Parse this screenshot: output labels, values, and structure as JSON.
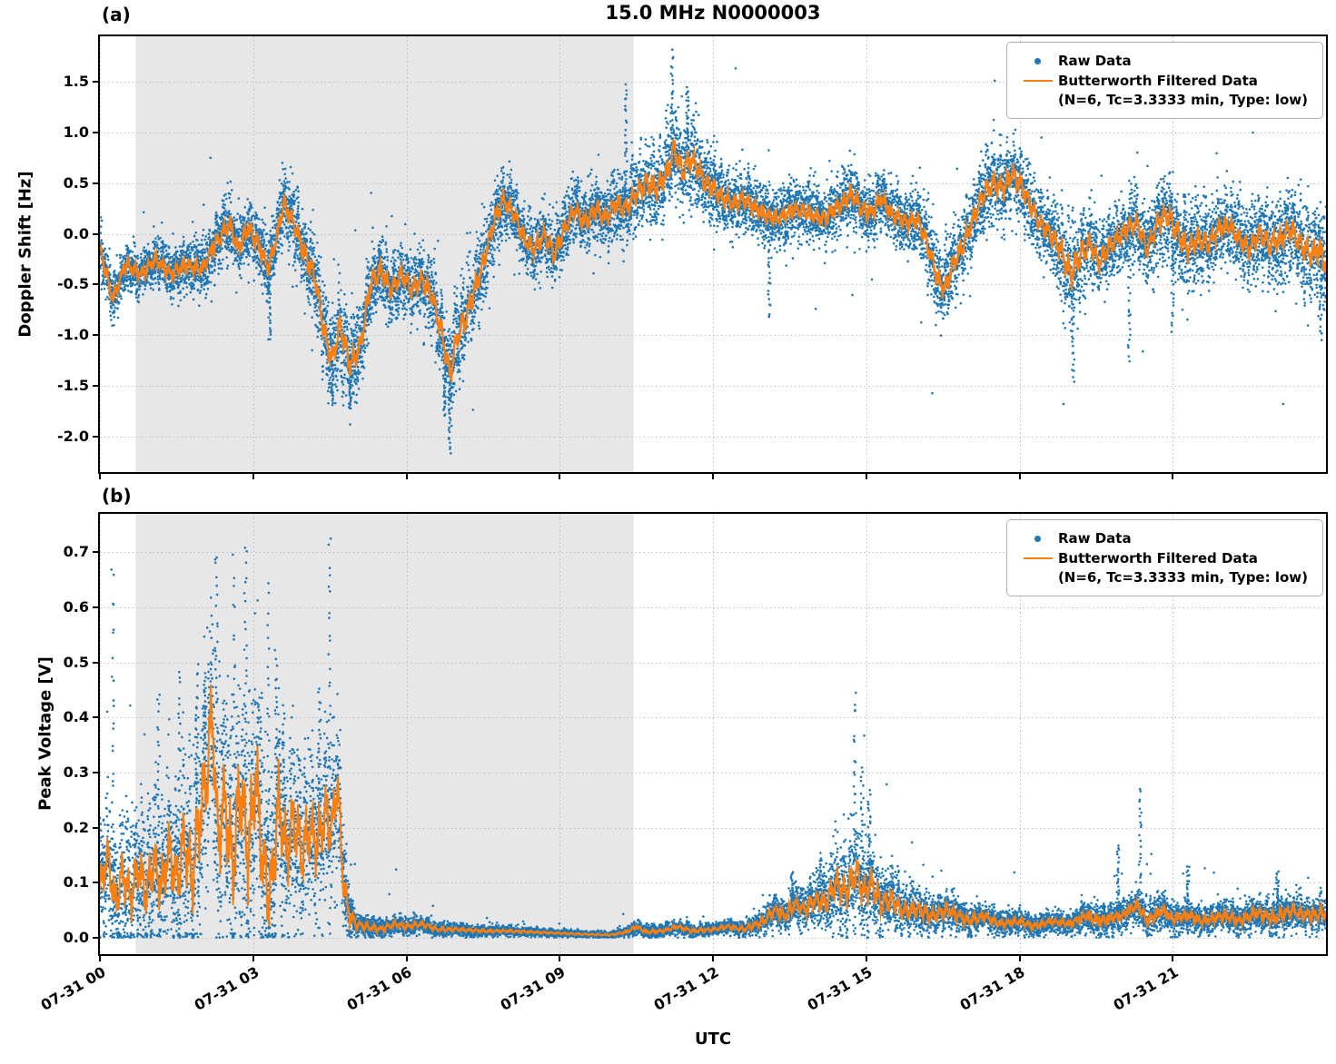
{
  "title": "15.0 MHz N0000003",
  "xlabel": "UTC",
  "legend": {
    "raw_label": "Raw Data",
    "filtered_label": "Butterworth Filtered Data",
    "filtered_sublabel": "(N=6, Tc=3.3333 min, Type: low)"
  },
  "colors": {
    "raw": "#1f77b4",
    "filtered": "#ff7f0e",
    "shade": "#e7e7e7",
    "grid": "#bdbdbd",
    "spine": "#000000"
  },
  "chart_data": [
    {
      "type": "scatter",
      "panel_label": "(a)",
      "ylabel": "Doppler Shift [Hz]",
      "xlim": [
        0,
        24
      ],
      "ylim": [
        -2.35,
        1.95
      ],
      "x_unit": "hours since 07-31 00:00 UTC",
      "ytick_values": [
        1.5,
        1.0,
        0.5,
        0.0,
        -0.5,
        -1.0,
        -1.5,
        -2.0
      ],
      "ytick_labels": [
        "1.5",
        "1.0",
        "0.5",
        "0.0",
        "-0.5",
        "-1.0",
        "-1.5",
        "-2.0"
      ],
      "xtick_values": [
        0,
        3,
        6,
        9,
        12,
        15,
        18,
        21
      ],
      "xtick_labels": [
        "07-31 00",
        "07-31 03",
        "07-31 06",
        "07-31 09",
        "07-31 12",
        "07-31 15",
        "07-31 18",
        "07-31 21"
      ],
      "show_xtick_labels": false,
      "grid": true,
      "shaded_region": [
        0.7,
        10.45
      ],
      "series": [
        {
          "name": "Raw Data",
          "type": "scatter",
          "color": "#1f77b4"
        },
        {
          "name": "Butterworth Filtered Data (N=6, Tc=3.3333 min, Type: low)",
          "type": "line",
          "color": "#ff7f0e",
          "x": [
            0,
            0.25,
            0.5,
            0.8,
            1.1,
            1.4,
            1.7,
            2.0,
            2.2,
            2.4,
            2.55,
            2.7,
            2.9,
            3.1,
            3.3,
            3.45,
            3.6,
            3.8,
            4.0,
            4.2,
            4.4,
            4.55,
            4.7,
            4.9,
            5.1,
            5.3,
            5.5,
            5.7,
            5.9,
            6.1,
            6.3,
            6.5,
            6.7,
            6.85,
            7.0,
            7.15,
            7.3,
            7.5,
            7.7,
            7.9,
            8.1,
            8.3,
            8.5,
            8.7,
            8.9,
            9.1,
            9.3,
            9.5,
            9.7,
            9.9,
            10.1,
            10.3,
            10.5,
            10.7,
            10.9,
            11.1,
            11.25,
            11.4,
            11.55,
            11.7,
            11.85,
            12.0,
            12.2,
            12.4,
            12.6,
            12.8,
            13.0,
            13.3,
            13.6,
            13.9,
            14.2,
            14.5,
            14.7,
            14.9,
            15.1,
            15.3,
            15.5,
            15.8,
            16.0,
            16.2,
            16.4,
            16.55,
            16.7,
            16.9,
            17.1,
            17.3,
            17.5,
            17.7,
            17.85,
            18.0,
            18.2,
            18.4,
            18.6,
            18.8,
            19.0,
            19.2,
            19.4,
            19.55,
            19.7,
            19.9,
            20.1,
            20.3,
            20.5,
            20.7,
            20.9,
            21.1,
            21.3,
            21.5,
            21.7,
            21.9,
            22.1,
            22.3,
            22.5,
            22.7,
            22.9,
            23.1,
            23.3,
            23.5,
            23.7,
            23.85,
            24.0
          ],
          "y": [
            -0.15,
            -0.65,
            -0.3,
            -0.4,
            -0.25,
            -0.4,
            -0.3,
            -0.35,
            -0.15,
            0.0,
            0.1,
            -0.15,
            0.05,
            -0.1,
            -0.35,
            -0.05,
            0.3,
            0.1,
            -0.2,
            -0.4,
            -1.0,
            -1.25,
            -0.9,
            -1.3,
            -1.1,
            -0.5,
            -0.35,
            -0.55,
            -0.4,
            -0.55,
            -0.45,
            -0.6,
            -1.0,
            -1.4,
            -1.0,
            -0.85,
            -0.6,
            -0.3,
            0.1,
            0.35,
            0.2,
            -0.05,
            -0.15,
            0.0,
            -0.2,
            0.05,
            0.25,
            0.1,
            0.25,
            0.15,
            0.3,
            0.25,
            0.4,
            0.5,
            0.45,
            0.6,
            0.85,
            0.6,
            0.75,
            0.65,
            0.5,
            0.45,
            0.35,
            0.3,
            0.35,
            0.25,
            0.2,
            0.15,
            0.25,
            0.2,
            0.15,
            0.3,
            0.4,
            0.25,
            0.2,
            0.35,
            0.2,
            0.1,
            0.15,
            -0.1,
            -0.45,
            -0.55,
            -0.3,
            -0.1,
            0.15,
            0.4,
            0.5,
            0.45,
            0.6,
            0.5,
            0.3,
            0.1,
            0.0,
            -0.15,
            -0.4,
            -0.2,
            -0.1,
            -0.3,
            -0.15,
            -0.05,
            0.05,
            0.1,
            -0.15,
            0.1,
            0.2,
            0.0,
            -0.15,
            -0.05,
            -0.1,
            0.05,
            0.1,
            -0.05,
            -0.15,
            0.0,
            -0.1,
            -0.05,
            0.05,
            -0.1,
            -0.2,
            -0.15,
            -0.3
          ]
        }
      ],
      "raw_envelope": {
        "x": [
          0,
          0.5,
          1,
          1.5,
          2,
          2.5,
          3,
          3.5,
          4,
          4.5,
          5,
          5.5,
          6,
          6.5,
          7,
          7.5,
          8,
          8.5,
          9,
          9.5,
          10,
          10.5,
          11,
          11.5,
          12,
          12.5,
          13,
          13.5,
          14,
          14.5,
          15,
          15.5,
          16,
          16.5,
          17,
          17.5,
          18,
          18.5,
          19,
          19.5,
          20,
          20.5,
          21,
          21.5,
          22,
          22.5,
          23,
          23.5,
          24
        ],
        "halfwidth": [
          0.25,
          0.2,
          0.2,
          0.22,
          0.25,
          0.28,
          0.3,
          0.3,
          0.35,
          0.42,
          0.4,
          0.35,
          0.3,
          0.35,
          0.45,
          0.35,
          0.3,
          0.28,
          0.3,
          0.3,
          0.32,
          0.35,
          0.4,
          0.38,
          0.35,
          0.3,
          0.25,
          0.25,
          0.25,
          0.28,
          0.28,
          0.25,
          0.28,
          0.38,
          0.3,
          0.38,
          0.35,
          0.28,
          0.5,
          0.32,
          0.3,
          0.32,
          0.42,
          0.38,
          0.32,
          0.35,
          0.38,
          0.42,
          0.45
        ]
      },
      "raw_outlier_spikes": [
        {
          "t": 3.32,
          "bottom": -1.05
        },
        {
          "t": 4.55,
          "bottom": -1.68
        },
        {
          "t": 4.9,
          "bottom": -1.72
        },
        {
          "t": 6.75,
          "bottom": -1.8
        },
        {
          "t": 6.85,
          "bottom": -2.15
        },
        {
          "t": 10.3,
          "top": 1.48
        },
        {
          "t": 11.2,
          "top": 1.8
        },
        {
          "t": 11.5,
          "top": 1.45
        },
        {
          "t": 13.1,
          "bottom": -0.85
        },
        {
          "t": 19.05,
          "bottom": -1.45
        },
        {
          "t": 20.15,
          "bottom": -1.25
        },
        {
          "t": 21.0,
          "bottom": -0.95
        },
        {
          "t": 23.9,
          "bottom": -1.05
        }
      ]
    },
    {
      "type": "scatter",
      "panel_label": "(b)",
      "ylabel": "Peak Voltage [V]",
      "xlim": [
        0,
        24
      ],
      "ylim": [
        -0.03,
        0.77
      ],
      "x_unit": "hours since 07-31 00:00 UTC",
      "ytick_values": [
        0.7,
        0.6,
        0.5,
        0.4,
        0.3,
        0.2,
        0.1,
        0.0
      ],
      "ytick_labels": [
        "0.7",
        "0.6",
        "0.5",
        "0.4",
        "0.3",
        "0.2",
        "0.1",
        "0.0"
      ],
      "xtick_values": [
        0,
        3,
        6,
        9,
        12,
        15,
        18,
        21
      ],
      "xtick_labels": [
        "07-31 00",
        "07-31 03",
        "07-31 06",
        "07-31 09",
        "07-31 12",
        "07-31 15",
        "07-31 18",
        "07-31 21"
      ],
      "show_xtick_labels": true,
      "grid": true,
      "shaded_region": [
        0.7,
        10.45
      ],
      "series": [
        {
          "name": "Raw Data",
          "type": "scatter",
          "color": "#1f77b4"
        },
        {
          "name": "Butterworth Filtered Data (N=6, Tc=3.3333 min, Type: low)",
          "type": "line",
          "color": "#ff7f0e",
          "x": [
            0,
            0.15,
            0.3,
            0.45,
            0.6,
            0.75,
            0.9,
            1.05,
            1.2,
            1.35,
            1.5,
            1.65,
            1.8,
            1.95,
            2.1,
            2.2,
            2.3,
            2.45,
            2.6,
            2.75,
            2.9,
            3.05,
            3.2,
            3.35,
            3.5,
            3.65,
            3.8,
            3.95,
            4.1,
            4.25,
            4.4,
            4.55,
            4.65,
            4.75,
            4.85,
            5.0,
            5.2,
            5.5,
            5.8,
            6.0,
            6.3,
            6.6,
            7.0,
            7.5,
            8.0,
            8.5,
            9.0,
            9.5,
            10.0,
            10.3,
            10.5,
            10.7,
            11.0,
            11.3,
            11.6,
            12.0,
            12.3,
            12.6,
            13.0,
            13.2,
            13.4,
            13.6,
            13.8,
            14.0,
            14.2,
            14.4,
            14.6,
            14.8,
            14.95,
            15.1,
            15.3,
            15.5,
            15.7,
            16.0,
            16.3,
            16.6,
            17.0,
            17.3,
            17.6,
            18.0,
            18.3,
            18.6,
            19.0,
            19.3,
            19.6,
            20.0,
            20.3,
            20.5,
            20.8,
            21.0,
            21.3,
            21.6,
            22.0,
            22.3,
            22.6,
            23.0,
            23.3,
            23.6,
            24.0
          ],
          "y": [
            0.09,
            0.15,
            0.06,
            0.12,
            0.07,
            0.13,
            0.08,
            0.14,
            0.09,
            0.16,
            0.1,
            0.18,
            0.1,
            0.22,
            0.3,
            0.42,
            0.18,
            0.25,
            0.12,
            0.28,
            0.15,
            0.3,
            0.12,
            0.08,
            0.25,
            0.15,
            0.22,
            0.15,
            0.2,
            0.17,
            0.22,
            0.2,
            0.29,
            0.12,
            0.05,
            0.025,
            0.02,
            0.015,
            0.025,
            0.02,
            0.025,
            0.015,
            0.015,
            0.012,
            0.012,
            0.01,
            0.008,
            0.006,
            0.005,
            0.01,
            0.02,
            0.01,
            0.012,
            0.02,
            0.012,
            0.015,
            0.02,
            0.015,
            0.03,
            0.05,
            0.04,
            0.06,
            0.05,
            0.07,
            0.06,
            0.1,
            0.08,
            0.12,
            0.08,
            0.1,
            0.06,
            0.07,
            0.05,
            0.05,
            0.04,
            0.05,
            0.03,
            0.04,
            0.025,
            0.03,
            0.02,
            0.03,
            0.025,
            0.04,
            0.03,
            0.04,
            0.06,
            0.03,
            0.05,
            0.035,
            0.04,
            0.03,
            0.04,
            0.03,
            0.045,
            0.035,
            0.05,
            0.04,
            0.045
          ]
        }
      ],
      "raw_envelope": {
        "x": [
          0,
          0.5,
          1,
          1.5,
          2,
          2.5,
          3,
          3.5,
          4,
          4.5,
          4.8,
          5,
          5.5,
          6,
          6.5,
          7,
          8,
          9,
          10,
          10.5,
          11,
          11.5,
          12,
          12.5,
          13,
          13.5,
          14,
          14.5,
          15,
          15.5,
          16,
          16.5,
          17,
          17.5,
          18,
          18.5,
          19,
          19.5,
          20,
          20.5,
          21,
          21.5,
          22,
          22.5,
          23,
          23.5,
          24
        ],
        "halfwidth": [
          0.1,
          0.12,
          0.13,
          0.15,
          0.2,
          0.22,
          0.22,
          0.18,
          0.15,
          0.15,
          0.08,
          0.02,
          0.015,
          0.015,
          0.012,
          0.01,
          0.008,
          0.006,
          0.005,
          0.012,
          0.01,
          0.012,
          0.01,
          0.012,
          0.02,
          0.03,
          0.04,
          0.08,
          0.08,
          0.05,
          0.04,
          0.03,
          0.025,
          0.02,
          0.02,
          0.018,
          0.02,
          0.03,
          0.025,
          0.03,
          0.025,
          0.025,
          0.025,
          0.025,
          0.03,
          0.025,
          0.03
        ]
      },
      "raw_outlier_spikes": [
        {
          "t": 0.25,
          "top": 0.66
        },
        {
          "t": 1.15,
          "top": 0.45
        },
        {
          "t": 1.55,
          "top": 0.49
        },
        {
          "t": 1.9,
          "top": 0.49
        },
        {
          "t": 2.05,
          "top": 0.48
        },
        {
          "t": 2.28,
          "top": 0.71
        },
        {
          "t": 2.62,
          "top": 0.68
        },
        {
          "t": 2.85,
          "top": 0.72
        },
        {
          "t": 3.15,
          "top": 0.45
        },
        {
          "t": 3.3,
          "top": 0.64
        },
        {
          "t": 3.45,
          "top": 0.52
        },
        {
          "t": 3.6,
          "top": 0.42
        },
        {
          "t": 4.3,
          "top": 0.45
        },
        {
          "t": 4.5,
          "top": 0.73
        },
        {
          "t": 13.55,
          "top": 0.12
        },
        {
          "t": 14.1,
          "top": 0.15
        },
        {
          "t": 14.78,
          "top": 0.43
        },
        {
          "t": 14.92,
          "top": 0.31
        },
        {
          "t": 15.06,
          "top": 0.26
        },
        {
          "t": 19.93,
          "top": 0.17
        },
        {
          "t": 20.36,
          "top": 0.27
        },
        {
          "t": 21.3,
          "top": 0.13
        },
        {
          "t": 23.05,
          "top": 0.12
        }
      ]
    }
  ]
}
